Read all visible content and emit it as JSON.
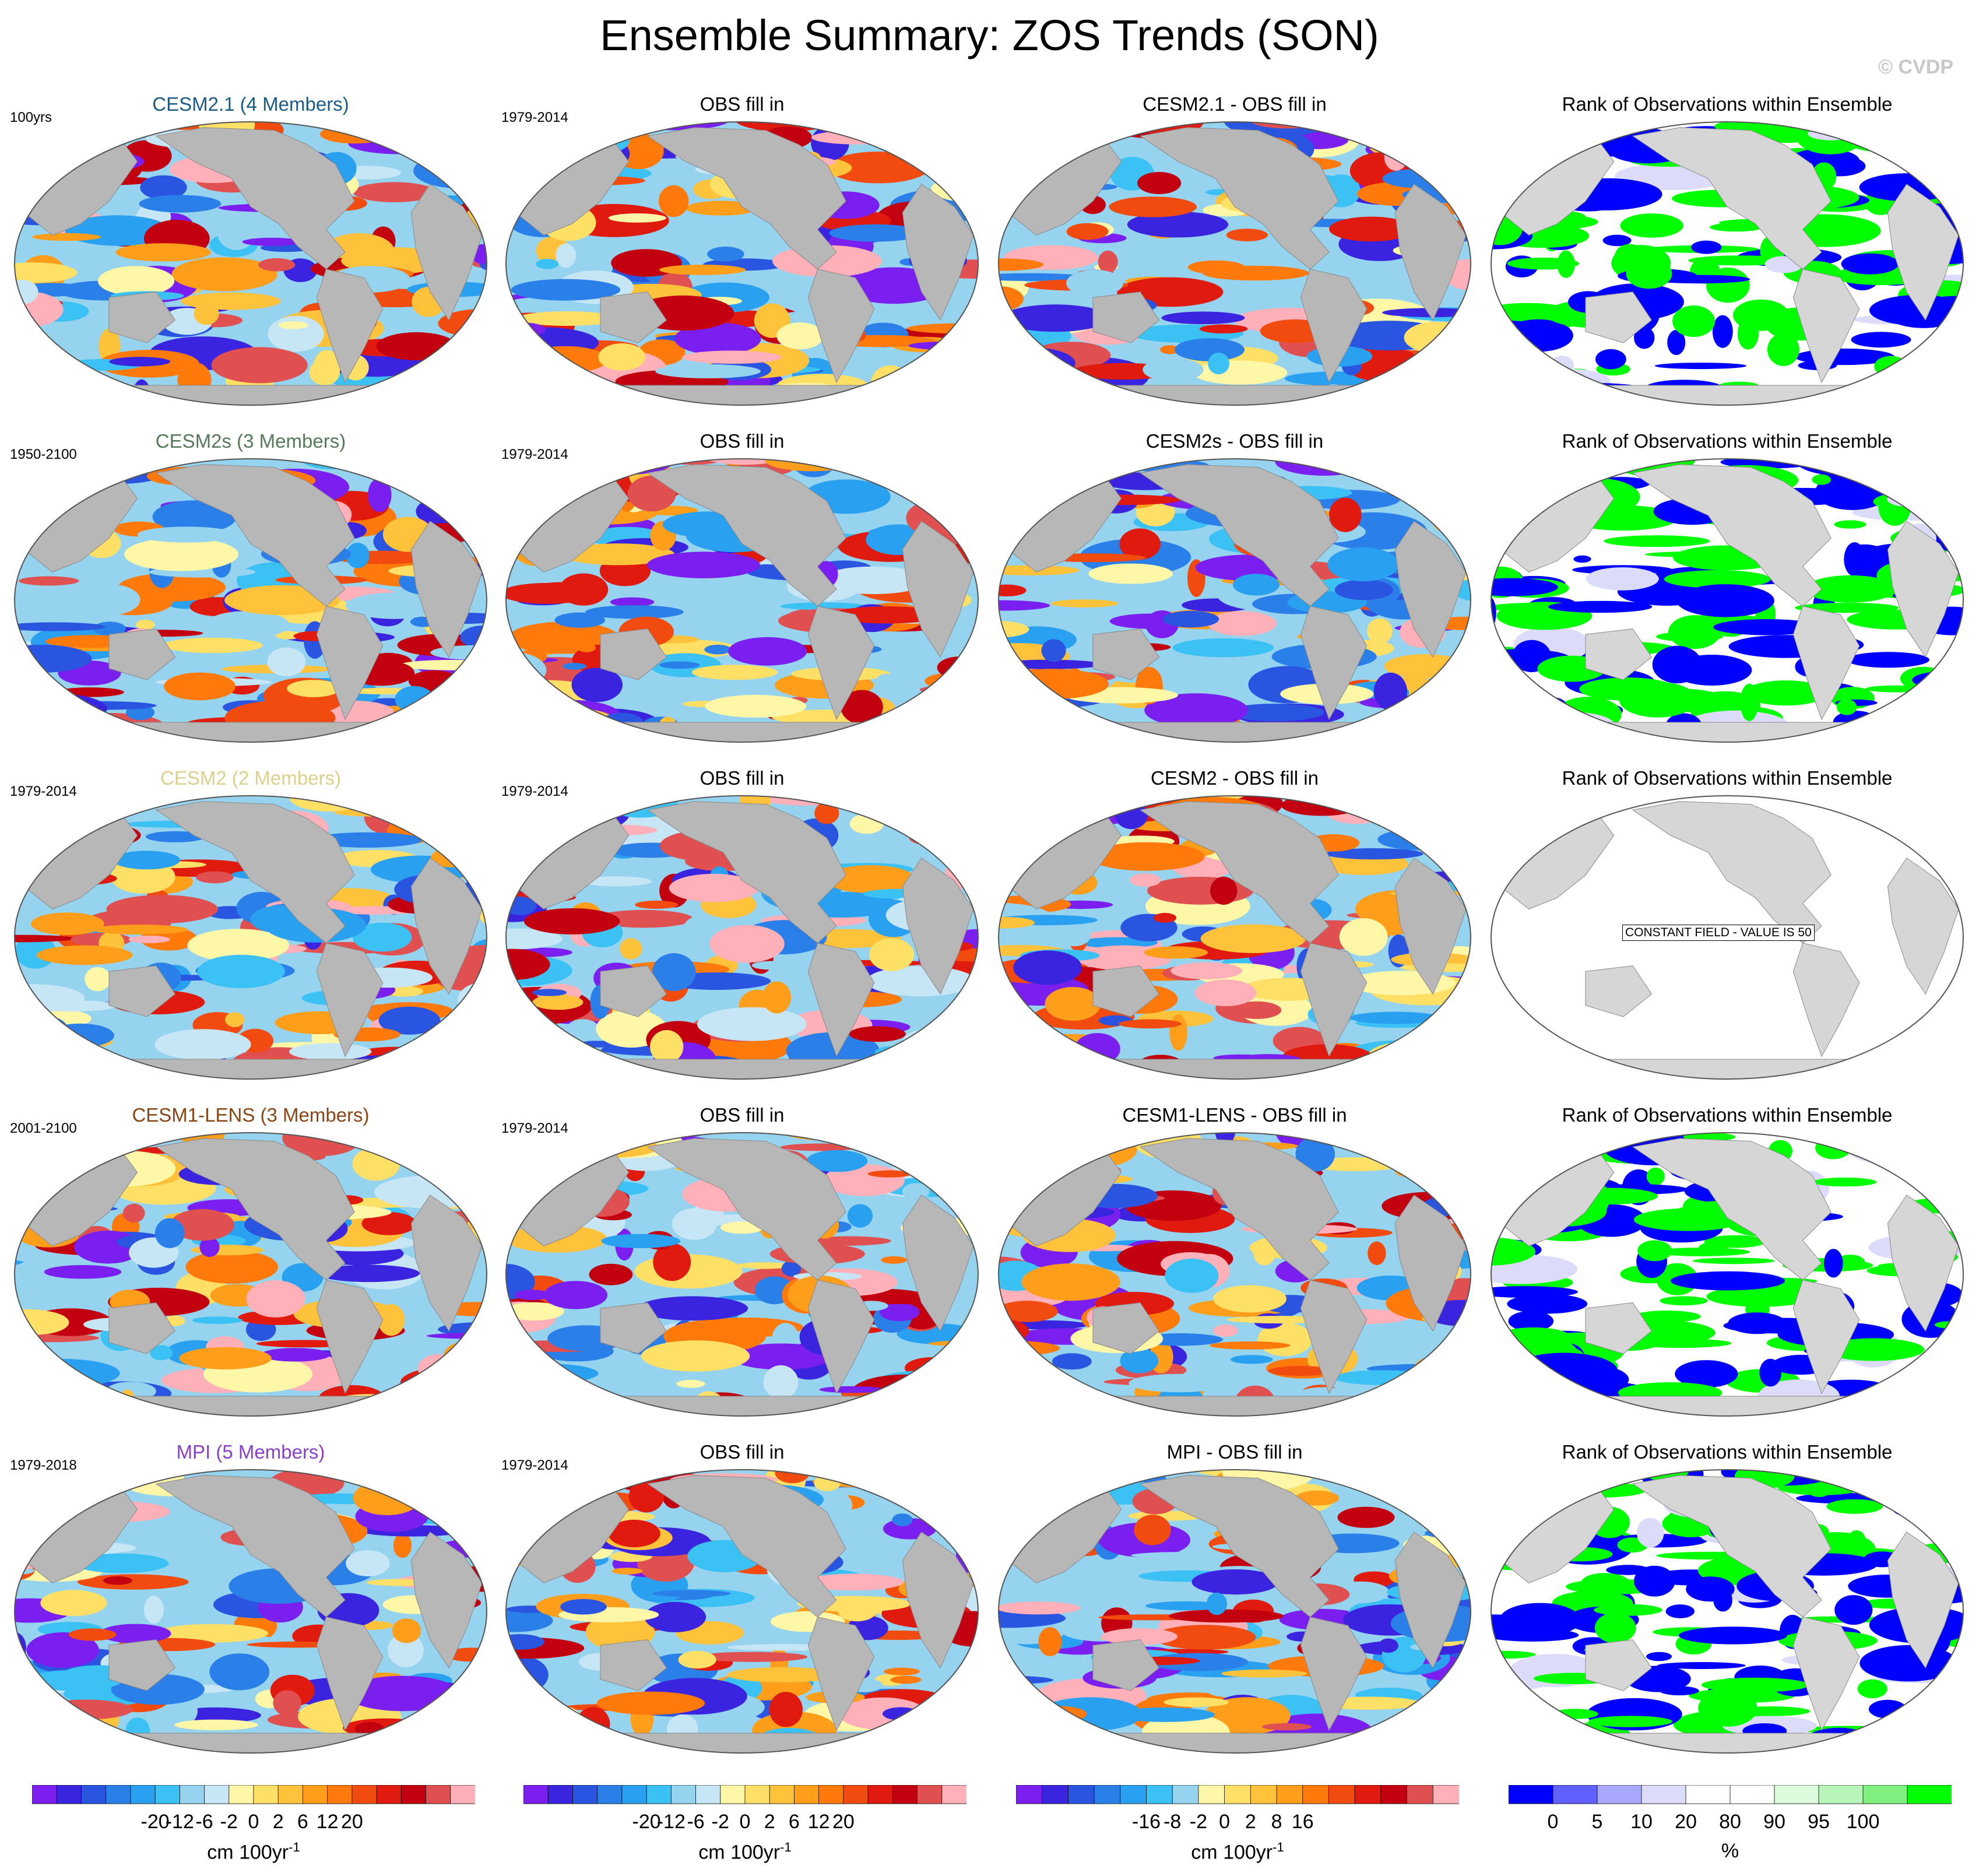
{
  "title": "Ensemble Summary: ZOS Trends (SON)",
  "credit": "© CVDP",
  "colors": {
    "land": "#b7b7b7",
    "land_light": "#d6d6d6",
    "ocean_outline": "#555555",
    "trend_scale": [
      "#7a1ff0",
      "#3b24e0",
      "#2a55e0",
      "#2a7fe8",
      "#2aa0f0",
      "#3cc1f5",
      "#96d3ee",
      "#c6e6f5",
      "#fff7a8",
      "#ffe066",
      "#ffc23a",
      "#ff9e1a",
      "#ff7a0a",
      "#f24b0f",
      "#e01a0f",
      "#c2000f",
      "#e05050",
      "#ffb0b8"
    ],
    "diff_scale": [
      "#7a1ff0",
      "#3b24e0",
      "#2a55e0",
      "#2a7fe8",
      "#2aa0f0",
      "#3cc1f5",
      "#96d3ee",
      "#fff7a8",
      "#ffe066",
      "#ffc23a",
      "#ff9e1a",
      "#ff7a0a",
      "#f24b0f",
      "#e01a0f",
      "#c2000f",
      "#e05050",
      "#ffb0b8"
    ],
    "rank_scale": [
      "#0000ff",
      "#6060ff",
      "#a8a8ff",
      "#dcdcfa",
      "#ffffff",
      "#ffffff",
      "#dcfadc",
      "#b8f5b8",
      "#80f080",
      "#00ff00"
    ]
  },
  "chart_data": {
    "type": "heatmap",
    "projection": "Robinson",
    "rows": [
      {
        "model": "CESM2.1 (4 Members)",
        "model_color": "#1a5c88",
        "model_period": "100yrs",
        "obs_title": "OBS fill in",
        "obs_period": "1979-2014",
        "diff_title": "CESM2.1 - OBS fill in",
        "rank_title": "Rank of Observations within Ensemble"
      },
      {
        "model": "CESM2s (3 Members)",
        "model_color": "#557a5a",
        "model_period": "1950-2100",
        "obs_title": "OBS fill in",
        "obs_period": "1979-2014",
        "diff_title": "CESM2s - OBS fill in",
        "rank_title": "Rank of Observations within Ensemble"
      },
      {
        "model": "CESM2 (2 Members)",
        "model_color": "#ddd08a",
        "model_period": "1979-2014",
        "obs_title": "OBS fill in",
        "obs_period": "1979-2014",
        "diff_title": "CESM2 - OBS fill in",
        "rank_title": "Rank of Observations within Ensemble",
        "rank_notice": "CONSTANT FIELD - VALUE IS 50"
      },
      {
        "model": "CESM1-LENS (3 Members)",
        "model_color": "#8b4513",
        "model_period": "2001-2100",
        "obs_title": "OBS fill in",
        "obs_period": "1979-2014",
        "diff_title": "CESM1-LENS - OBS fill in",
        "rank_title": "Rank of Observations within Ensemble"
      },
      {
        "model": "MPI (5 Members)",
        "model_color": "#8a3fd0",
        "model_period": "1979-2018",
        "obs_title": "OBS fill in",
        "obs_period": "1979-2014",
        "diff_title": "MPI - OBS fill in",
        "rank_title": "Rank of Observations within Ensemble"
      }
    ],
    "colorbars": [
      {
        "labels": [
          "-20",
          "-12",
          "-6",
          "-2",
          "0",
          "2",
          "6",
          "12",
          "20"
        ],
        "unit": "cm 100yr",
        "unit_exp": "-1"
      },
      {
        "labels": [
          "-20",
          "-12",
          "-6",
          "-2",
          "0",
          "2",
          "6",
          "12",
          "20"
        ],
        "unit": "cm 100yr",
        "unit_exp": "-1"
      },
      {
        "labels": [
          "-16",
          "-8",
          "-2",
          "0",
          "2",
          "8",
          "16"
        ],
        "unit": "cm 100yr",
        "unit_exp": "-1"
      },
      {
        "labels": [
          "0",
          "5",
          "10",
          "20",
          "80",
          "90",
          "95",
          "100"
        ],
        "unit": "%"
      }
    ]
  }
}
